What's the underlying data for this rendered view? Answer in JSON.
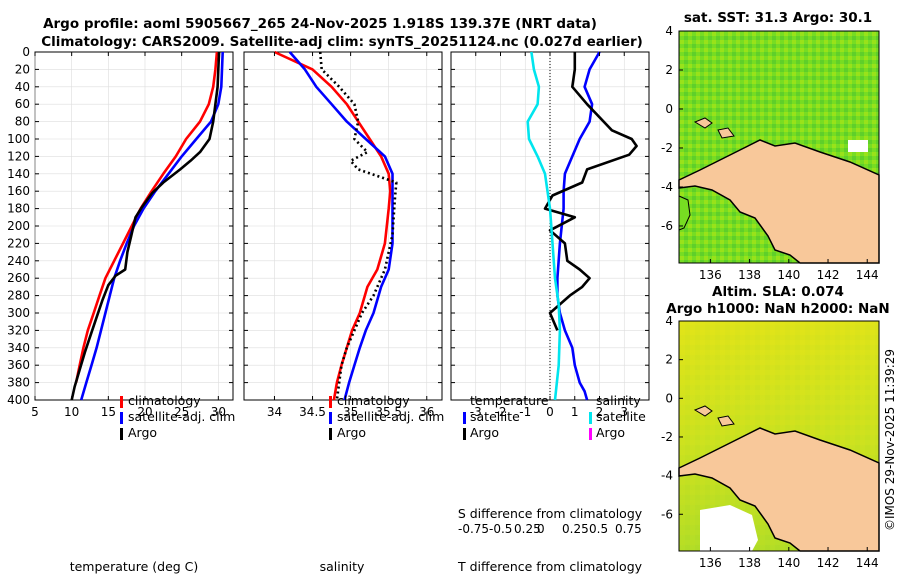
{
  "title_line1": "Argo profile: aoml 5905667_265 24-Nov-2025 1.918S 139.37E (NRT data)",
  "title_line2": "Climatology: CARS2009. Satellite-adj clim: synTS_20251124.nc (0.027d earlier)",
  "sst_title": "sat. SST: 31.3 Argo: 30.1",
  "sla_title1": "Altim. SLA: 0.074",
  "sla_title2": "Argo h1000: NaN h2000: NaN",
  "credit": "©IMOS 29-Nov-2025 11:39:29",
  "colors": {
    "clim": "#ff0000",
    "sat": "#0000ff",
    "argo": "#000000",
    "sat_s": "#00e5ee",
    "argo_s": "#ff00ff",
    "land": "#f8c89a",
    "sea": "#66dd22"
  },
  "chart_data": [
    {
      "type": "line",
      "id": "temperature",
      "xlabel": "temperature (deg C)",
      "ylabel": "",
      "xlim": [
        5,
        32
      ],
      "ylim": [
        400,
        0
      ],
      "x_ticks": [
        "5",
        "10",
        "15",
        "20",
        "25",
        "30"
      ],
      "y_ticks": [
        "0",
        "20",
        "40",
        "60",
        "80",
        "100",
        "120",
        "140",
        "160",
        "180",
        "200",
        "220",
        "240",
        "260",
        "280",
        "300",
        "320",
        "340",
        "360",
        "380",
        "400"
      ],
      "legend": [
        "climatology",
        "satellite-adj. clim",
        "Argo"
      ],
      "series": [
        {
          "name": "climatology",
          "color": "#ff0000",
          "x": [
            29.8,
            29.6,
            29.3,
            28.7,
            27.5,
            25.6,
            24.2,
            22.5,
            20.9,
            19.4,
            18.2,
            17.0,
            15.8,
            14.6,
            13.8,
            13.0,
            12.2,
            11.6,
            11.1,
            10.6
          ],
          "y": [
            0,
            20,
            40,
            60,
            80,
            100,
            120,
            140,
            160,
            180,
            200,
            220,
            240,
            260,
            280,
            300,
            320,
            340,
            360,
            380
          ]
        },
        {
          "name": "satellite-adj. clim",
          "color": "#0000ff",
          "x": [
            30.6,
            30.5,
            30.4,
            30.0,
            29.0,
            27.0,
            25.0,
            23.2,
            21.4,
            19.8,
            18.5,
            17.5,
            16.6,
            15.8,
            15.2,
            14.6,
            14.0,
            13.4,
            12.7,
            12.0,
            11.3
          ],
          "y": [
            0,
            20,
            40,
            60,
            80,
            100,
            120,
            140,
            160,
            180,
            200,
            220,
            240,
            260,
            280,
            300,
            320,
            340,
            360,
            380,
            400
          ]
        },
        {
          "name": "Argo",
          "color": "#000000",
          "x": [
            30.1,
            30.0,
            29.9,
            29.6,
            29.3,
            28.8,
            27.5,
            26.2,
            24.8,
            22.5,
            21.0,
            19.6,
            18.7,
            18.1,
            17.6,
            17.3,
            16.0,
            15.0,
            14.2,
            13.4,
            12.6,
            11.8,
            11.1,
            10.4,
            10.0
          ],
          "y": [
            0,
            20,
            40,
            60,
            80,
            100,
            115,
            125,
            135,
            150,
            162,
            178,
            190,
            212,
            230,
            250,
            257,
            268,
            285,
            305,
            325,
            345,
            365,
            385,
            400
          ]
        }
      ]
    },
    {
      "type": "line",
      "id": "salinity",
      "xlabel": "salinity",
      "xlim": [
        33.6,
        36.2
      ],
      "ylim": [
        400,
        0
      ],
      "x_ticks": [
        "34",
        "34.5",
        "35",
        "35.5",
        "36"
      ],
      "legend": [
        "climatology",
        "satellite-adj. clim",
        "Argo"
      ],
      "series": [
        {
          "name": "climatology",
          "color": "#ff0000",
          "x": [
            34.0,
            34.5,
            34.75,
            34.95,
            35.1,
            35.25,
            35.4,
            35.5,
            35.52,
            35.5,
            35.45,
            35.35,
            35.22,
            35.12,
            35.02,
            34.95,
            34.88,
            34.82,
            34.78
          ],
          "y": [
            0,
            20,
            40,
            60,
            80,
            100,
            120,
            140,
            160,
            180,
            220,
            250,
            270,
            300,
            320,
            340,
            360,
            380,
            400
          ]
        },
        {
          "name": "satellite-adj. clim",
          "color": "#0000ff",
          "x": [
            34.2,
            34.4,
            34.55,
            34.75,
            34.95,
            35.2,
            35.45,
            35.55,
            35.55,
            35.55,
            35.55,
            35.5,
            35.4,
            35.3,
            35.2,
            35.12,
            35.05,
            34.98,
            34.92
          ],
          "y": [
            0,
            20,
            40,
            60,
            80,
            100,
            120,
            140,
            160,
            180,
            220,
            250,
            270,
            300,
            320,
            340,
            360,
            380,
            400
          ]
        },
        {
          "name": "Argo",
          "color": "#000000",
          "x": [
            34.6,
            34.62,
            34.85,
            35.05,
            35.1,
            35.05,
            35.22,
            35.0,
            35.1,
            35.6,
            35.58,
            35.55,
            35.45,
            35.3,
            35.15,
            35.05,
            34.95,
            34.88,
            34.82
          ],
          "y": [
            0,
            20,
            40,
            60,
            80,
            100,
            115,
            125,
            135,
            150,
            170,
            210,
            250,
            280,
            300,
            320,
            340,
            360,
            400
          ]
        }
      ]
    },
    {
      "type": "line",
      "id": "difference",
      "xlabel": "T difference from climatology",
      "xlim": [
        -4,
        4
      ],
      "ylim": [
        400,
        0
      ],
      "x_ticks": [
        "-3",
        "-2",
        "-1",
        "0",
        "1",
        "2",
        "3"
      ],
      "legend_temperature_title": "temperature",
      "legend_salinity_title": "salinity",
      "legend_temperature": [
        "satellite",
        "Argo"
      ],
      "legend_salinity": [
        "satellite",
        "Argo"
      ],
      "s_label_title": "S difference from climatology",
      "s_ticks": [
        "-0.75",
        "-0.5",
        "0.25",
        "0",
        "0.25",
        "0.5",
        "0.75"
      ],
      "series": [
        {
          "name": "temperature satellite",
          "color": "#0000ff",
          "x": [
            2.0,
            1.6,
            1.4,
            1.7,
            1.6,
            1.2,
            0.9,
            0.6,
            0.55,
            0.55,
            0.4,
            0.3,
            0.3,
            0.4,
            0.6,
            0.9,
            1.0,
            1.2,
            1.4,
            1.5
          ],
          "y": [
            0,
            20,
            40,
            60,
            80,
            100,
            120,
            140,
            160,
            180,
            220,
            260,
            280,
            300,
            320,
            340,
            360,
            380,
            390,
            400
          ]
        },
        {
          "name": "temperature Argo",
          "color": "#000000",
          "x": [
            1.0,
            1.0,
            0.9,
            1.5,
            2.5,
            3.3,
            3.5,
            3.2,
            1.5,
            1.3,
            0.1,
            -0.2,
            1.0,
            0.0,
            0.6,
            0.7,
            1.2,
            1.6,
            1.3,
            0.8,
            0.0,
            0.3
          ],
          "y": [
            0,
            20,
            40,
            60,
            90,
            100,
            108,
            118,
            135,
            150,
            165,
            180,
            190,
            205,
            220,
            240,
            250,
            260,
            270,
            280,
            300,
            320
          ]
        },
        {
          "name": "salinity satellite",
          "color": "#00e5ee",
          "x": [
            -0.75,
            -0.65,
            -0.45,
            -0.5,
            -0.9,
            -0.85,
            -0.5,
            -0.2,
            -0.1,
            0.0,
            0.1,
            0.2,
            0.35,
            0.4,
            0.35,
            0.2
          ],
          "y": [
            0,
            20,
            40,
            60,
            80,
            100,
            120,
            140,
            160,
            180,
            220,
            260,
            290,
            320,
            360,
            400
          ]
        }
      ]
    },
    {
      "type": "heatmap",
      "id": "sst_map",
      "title": "sat. SST: 31.3 Argo: 30.1",
      "xlim": [
        134.4,
        144.6
      ],
      "ylim": [
        -7.9,
        4
      ],
      "x_ticks": [
        "136",
        "138",
        "140",
        "142",
        "144"
      ],
      "y_ticks": [
        "4",
        "2",
        "0",
        "-2",
        "-4",
        "-6"
      ]
    },
    {
      "type": "heatmap",
      "id": "sla_map",
      "title": "Altim. SLA: 0.074",
      "xlim": [
        134.4,
        144.6
      ],
      "ylim": [
        -7.9,
        4
      ],
      "x_ticks": [
        "136",
        "138",
        "140",
        "142",
        "144"
      ],
      "y_ticks": [
        "4",
        "2",
        "0",
        "-2",
        "-4",
        "-6"
      ]
    }
  ]
}
